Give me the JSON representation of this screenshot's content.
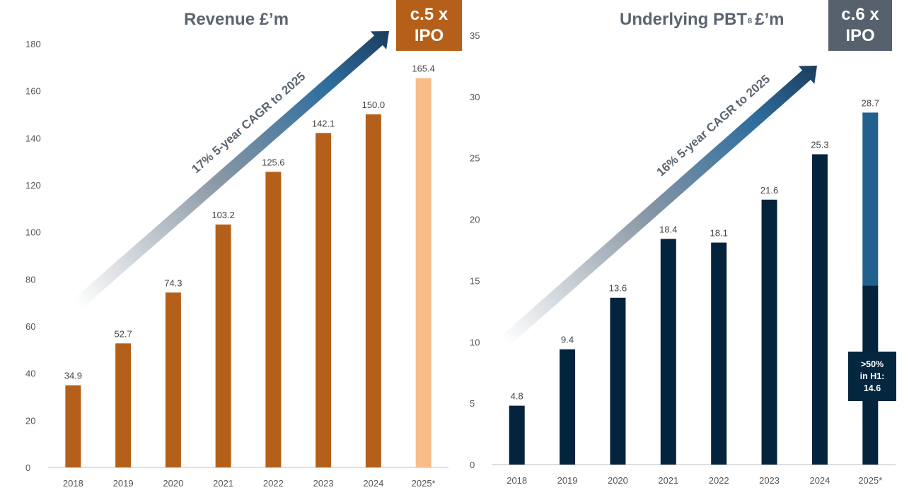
{
  "colors": {
    "revenue_bar": "#b5601a",
    "revenue_forecast_bar": "#f7bc87",
    "pbt_bar": "#04233d",
    "pbt_h2_bar": "#22618d",
    "revenue_callout_bg": "#b5601a",
    "pbt_callout_bg": "#56616d",
    "arrow_dark": "#1c3d5e",
    "arrow_mid": "#2e6e9e",
    "title_text": "#5b6570"
  },
  "icons": {
    "cagr_arrow": "gradient-arrow-icon"
  },
  "revenue_panel": {
    "callout_line1": "c.5 x",
    "callout_line2": "IPO",
    "cagr_text": "17% 5-year CAGR to 2025"
  },
  "pbt_panel": {
    "callout_line1": "c.6 x",
    "callout_line2": "IPO",
    "cagr_text": "16% 5-year CAGR to 2025",
    "note_line1": ">50%",
    "note_line2": "in H1:",
    "note_line3": "14.6"
  },
  "chart_data": [
    {
      "type": "bar",
      "title": "Revenue £’m",
      "categories": [
        "2018",
        "2019",
        "2020",
        "2021",
        "2022",
        "2023",
        "2024",
        "2025*"
      ],
      "values": [
        34.9,
        52.7,
        74.3,
        103.2,
        125.6,
        142.1,
        150.0,
        165.4
      ],
      "data_labels": [
        "34.9",
        "52.7",
        "74.3",
        "103.2",
        "125.6",
        "142.1",
        "150.0",
        "165.4"
      ],
      "highlight_last_as_forecast": true,
      "ylim": [
        0,
        180
      ],
      "yticks": [
        0,
        20,
        40,
        60,
        80,
        100,
        120,
        140,
        160,
        180
      ],
      "grid": false
    },
    {
      "type": "bar",
      "title": "Underlying PBT",
      "title_superscript": "8",
      "title_suffix": "£’m",
      "categories": [
        "2018",
        "2019",
        "2020",
        "2021",
        "2022",
        "2023",
        "2024",
        "2025*"
      ],
      "values": [
        4.8,
        9.4,
        13.6,
        18.4,
        18.1,
        21.6,
        25.3,
        28.7
      ],
      "data_labels": [
        "4.8",
        "9.4",
        "13.6",
        "18.4",
        "18.1",
        "21.6",
        "25.3",
        "28.7"
      ],
      "last_bar_h1_value": 14.6,
      "ylim": [
        0,
        35
      ],
      "yticks": [
        0,
        5,
        10,
        15,
        20,
        25,
        30,
        35
      ],
      "grid": false
    }
  ]
}
